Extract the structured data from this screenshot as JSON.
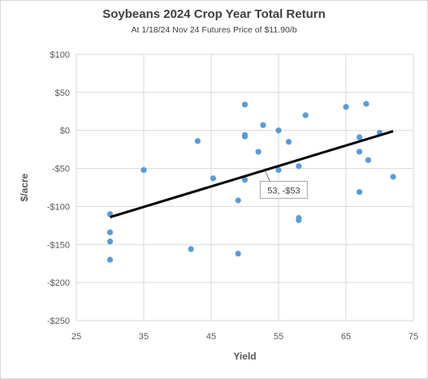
{
  "chart_data": {
    "type": "scatter",
    "title": "Soybeans 2024  Crop Year Total Return",
    "subtitle": "At 1/18/24 Nov 24 Futures Price of $11.90/b",
    "xlabel": "Yield",
    "ylabel": "$/acre",
    "xlim": [
      25,
      75
    ],
    "ylim": [
      -250,
      100
    ],
    "x_ticks": [
      25,
      35,
      45,
      55,
      65,
      75
    ],
    "y_ticks": [
      100,
      50,
      0,
      -50,
      -100,
      -150,
      -200,
      -250
    ],
    "y_tick_labels": [
      "$100",
      "$50",
      "$0",
      "-$50",
      "-$100",
      "-$150",
      "-$200",
      "-$250"
    ],
    "grid": true,
    "legend": "none",
    "point_color": "#5b9bd5",
    "series": [
      {
        "points": [
          [
            30,
            -110
          ],
          [
            30,
            -134
          ],
          [
            30,
            -146
          ],
          [
            30,
            -170
          ],
          [
            35,
            -52
          ],
          [
            42,
            -156
          ],
          [
            43,
            -14
          ],
          [
            45.3,
            -63
          ],
          [
            49,
            -92
          ],
          [
            49,
            -162
          ],
          [
            50,
            -6
          ],
          [
            50,
            -8
          ],
          [
            50,
            34
          ],
          [
            50,
            -65
          ],
          [
            52,
            -28
          ],
          [
            52.7,
            7
          ],
          [
            55,
            0
          ],
          [
            55,
            -52
          ],
          [
            56.5,
            -15
          ],
          [
            58,
            -47
          ],
          [
            58,
            -115
          ],
          [
            58,
            -118
          ],
          [
            59,
            20
          ],
          [
            65,
            31
          ],
          [
            67,
            -9
          ],
          [
            67,
            -28
          ],
          [
            67,
            -81
          ],
          [
            68,
            35
          ],
          [
            68.3,
            -39
          ],
          [
            70,
            -3
          ],
          [
            72,
            -61
          ]
        ]
      }
    ],
    "trendline": {
      "x": [
        30,
        72
      ],
      "y": [
        -114,
        -1
      ],
      "color": "#000000"
    },
    "callout": {
      "x": 53,
      "y": -53,
      "text": "53, -$53"
    }
  }
}
